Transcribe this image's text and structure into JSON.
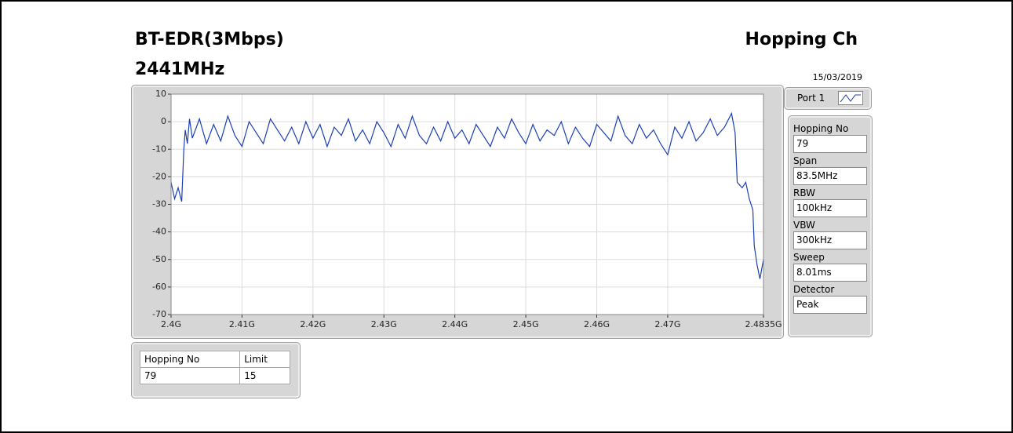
{
  "header": {
    "title": "BT-EDR(3Mbps)",
    "frequency": "2441MHz",
    "mode": "Hopping Ch",
    "date": "15/03/2019"
  },
  "chart_data": {
    "type": "line",
    "x": [
      2.4,
      2.4005,
      2.401,
      2.4015,
      2.4018,
      2.402,
      2.4023,
      2.4026,
      2.403,
      2.404,
      2.405,
      2.406,
      2.407,
      2.408,
      2.409,
      2.41,
      2.411,
      2.412,
      2.413,
      2.414,
      2.415,
      2.416,
      2.417,
      2.418,
      2.419,
      2.42,
      2.421,
      2.422,
      2.423,
      2.424,
      2.425,
      2.426,
      2.427,
      2.428,
      2.429,
      2.43,
      2.431,
      2.432,
      2.433,
      2.434,
      2.435,
      2.436,
      2.437,
      2.438,
      2.439,
      2.44,
      2.441,
      2.442,
      2.443,
      2.444,
      2.445,
      2.446,
      2.447,
      2.448,
      2.449,
      2.45,
      2.451,
      2.452,
      2.453,
      2.454,
      2.455,
      2.456,
      2.457,
      2.458,
      2.459,
      2.46,
      2.461,
      2.462,
      2.463,
      2.464,
      2.465,
      2.466,
      2.467,
      2.468,
      2.469,
      2.47,
      2.471,
      2.472,
      2.473,
      2.474,
      2.475,
      2.476,
      2.477,
      2.478,
      2.479,
      2.4795,
      2.4798,
      2.4805,
      2.481,
      2.4815,
      2.482,
      2.4822,
      2.4826,
      2.483,
      2.4835
    ],
    "series": [
      {
        "color": "#1a3fb8",
        "values": [
          -22,
          -28,
          -24,
          -29,
          -10,
          -3,
          -8,
          1,
          -6,
          1,
          -8,
          -1,
          -7,
          2,
          -5,
          -9,
          0,
          -4,
          -8,
          1,
          -3,
          -7,
          -2,
          -8,
          0,
          -6,
          -1,
          -9,
          -2,
          -5,
          1,
          -7,
          -3,
          -8,
          0,
          -4,
          -9,
          -1,
          -6,
          2,
          -5,
          -8,
          -2,
          -7,
          0,
          -6,
          -3,
          -8,
          -1,
          -5,
          -9,
          -2,
          -6,
          1,
          -4,
          -8,
          -1,
          -7,
          -3,
          -5,
          0,
          -8,
          -2,
          -6,
          -9,
          -1,
          -4,
          -7,
          2,
          -5,
          -8,
          -1,
          -6,
          -3,
          -8,
          -12,
          -2,
          -6,
          0,
          -7,
          -4,
          1,
          -5,
          -2,
          3,
          -4,
          -22,
          -24,
          -22,
          -28,
          -32,
          -45,
          -52,
          -57,
          -50
        ]
      }
    ],
    "xlim": [
      2.4,
      2.4835
    ],
    "xticks": [
      {
        "value": 2.4,
        "label": "2.4G"
      },
      {
        "value": 2.41,
        "label": "2.41G"
      },
      {
        "value": 2.42,
        "label": "2.42G"
      },
      {
        "value": 2.43,
        "label": "2.43G"
      },
      {
        "value": 2.44,
        "label": "2.44G"
      },
      {
        "value": 2.45,
        "label": "2.45G"
      },
      {
        "value": 2.46,
        "label": "2.46G"
      },
      {
        "value": 2.47,
        "label": "2.47G"
      },
      {
        "value": 2.4835,
        "label": "2.4835G"
      }
    ],
    "ylim": [
      -70,
      10
    ],
    "yticks": [
      -70,
      -60,
      -50,
      -40,
      -30,
      -20,
      -10,
      0,
      10
    ],
    "grid": true
  },
  "panel": {
    "port": "Port 1",
    "params": [
      {
        "label": "Hopping No",
        "value": "79"
      },
      {
        "label": "Span",
        "value": "83.5MHz"
      },
      {
        "label": "RBW",
        "value": "100kHz"
      },
      {
        "label": "VBW",
        "value": "300kHz"
      },
      {
        "label": "Sweep",
        "value": "8.01ms"
      },
      {
        "label": "Detector",
        "value": "Peak"
      }
    ]
  },
  "table": {
    "columns": [
      "Hopping No",
      "Limit"
    ],
    "rows": [
      [
        "79",
        "15"
      ]
    ]
  }
}
